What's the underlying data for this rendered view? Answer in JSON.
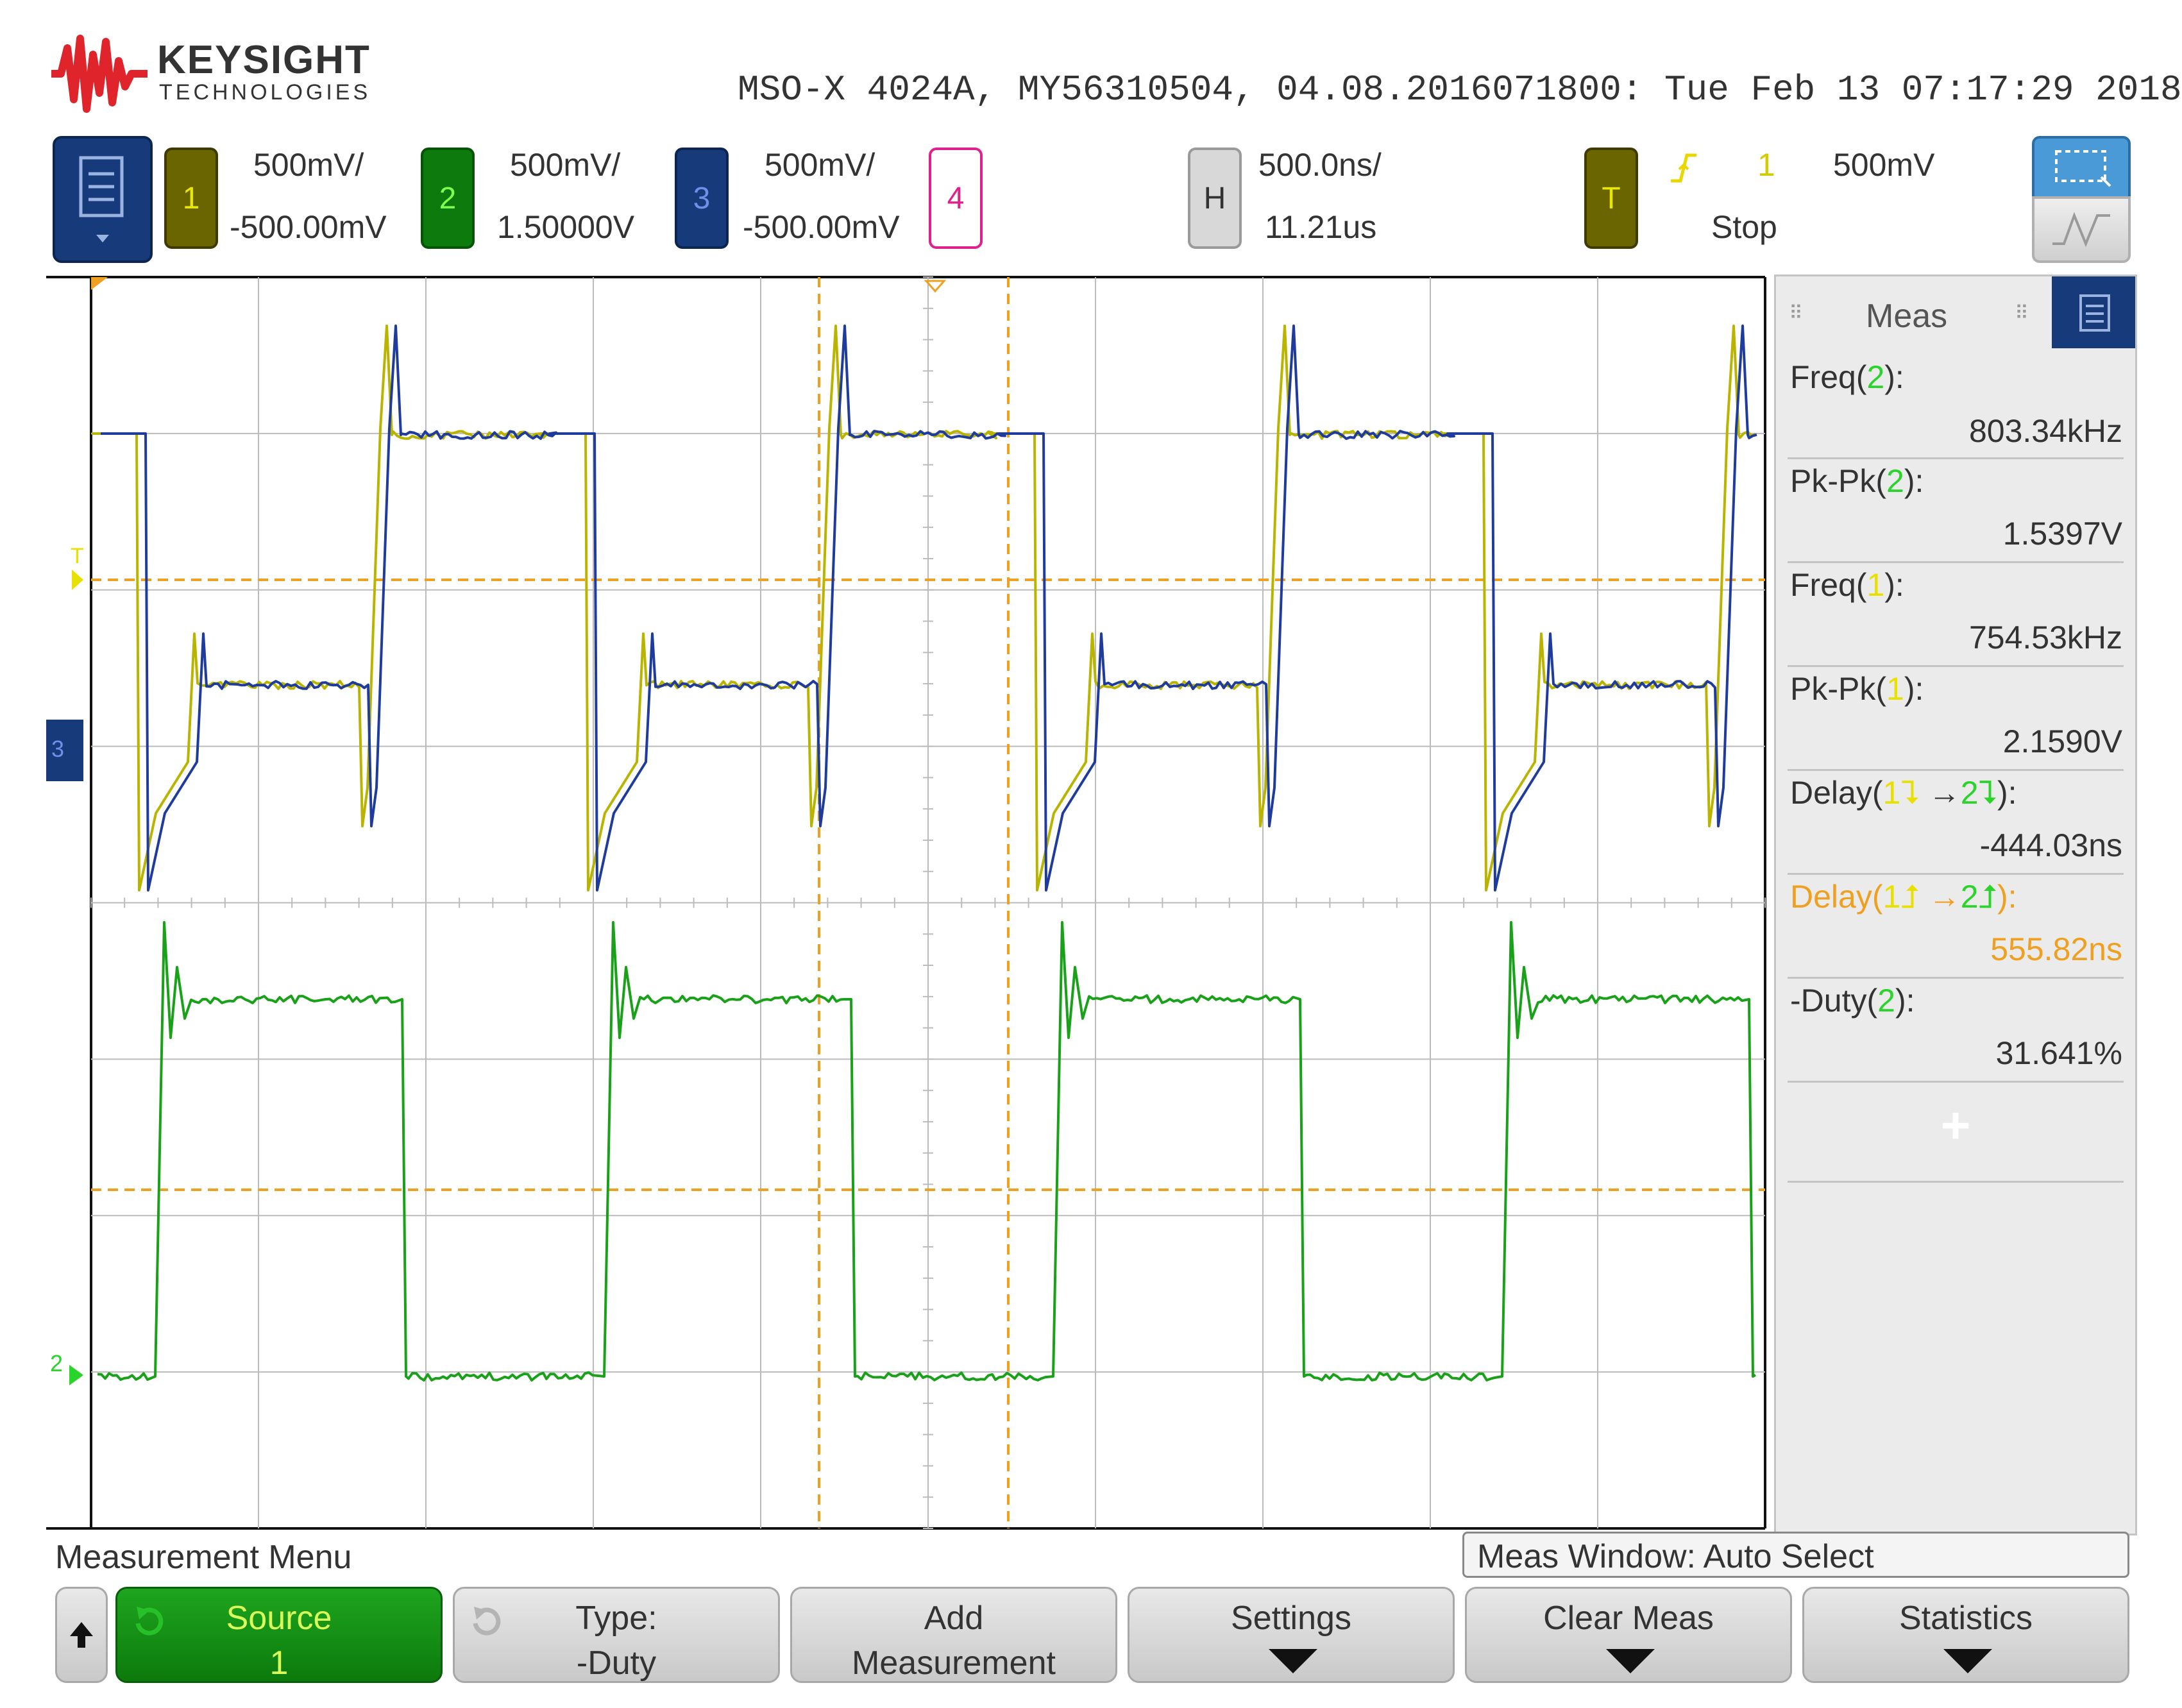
{
  "brand": {
    "name": "KEYSIGHT",
    "sub": "TECHNOLOGIES"
  },
  "instrument_line": "MSO-X 4024A, MY56310504, 04.08.2016071800: Tue Feb 13 07:17:29 2018",
  "channels": [
    {
      "num": "1",
      "scale": "500mV/",
      "offset": "-500.00mV",
      "color": "#c8c800"
    },
    {
      "num": "2",
      "scale": "500mV/",
      "offset": "1.50000V",
      "color": "#1fa11f"
    },
    {
      "num": "3",
      "scale": "500mV/",
      "offset": "-500.00mV",
      "color": "#1f3c9c"
    },
    {
      "num": "4",
      "color": "#e0208c"
    }
  ],
  "horizontal": {
    "label": "H",
    "scale": "500.0ns/",
    "position": "11.21us"
  },
  "trigger": {
    "label": "T",
    "source": "1",
    "level": "500mV",
    "status": "Stop"
  },
  "meas_panel": {
    "title": "Meas",
    "items": [
      {
        "name": "Freq",
        "ch": "2",
        "value": "803.34kHz"
      },
      {
        "name": "Pk-Pk",
        "ch": "2",
        "value": "1.5397V"
      },
      {
        "name": "Freq",
        "ch": "1",
        "value": "754.53kHz"
      },
      {
        "name": "Pk-Pk",
        "ch": "1",
        "value": "2.1590V"
      },
      {
        "name": "Delay",
        "ch": "1",
        "ch2": "2",
        "value": "-444.03ns"
      },
      {
        "name": "Delay",
        "ch": "1",
        "ch2": "2",
        "value": "555.82ns"
      },
      {
        "name": "-Duty",
        "ch": "2",
        "value": "31.641%"
      }
    ],
    "add_symbol": "+"
  },
  "menu_title": "Measurement Menu",
  "meas_window": "Meas Window: Auto Select",
  "softkeys": {
    "source_label": "Source",
    "source_value": "1",
    "type_label": "Type:",
    "type_value": "-Duty",
    "add_label1": "Add",
    "add_label2": "Measurement",
    "settings": "Settings",
    "clear": "Clear Meas",
    "stats": "Statistics"
  },
  "colors": {
    "ch1": "#b8b400",
    "ch2": "#19a119",
    "ch3": "#1f3c9c",
    "cursor": "#f0a020",
    "grid": "#bbbbbb",
    "panel_blue": "#163a7a"
  }
}
